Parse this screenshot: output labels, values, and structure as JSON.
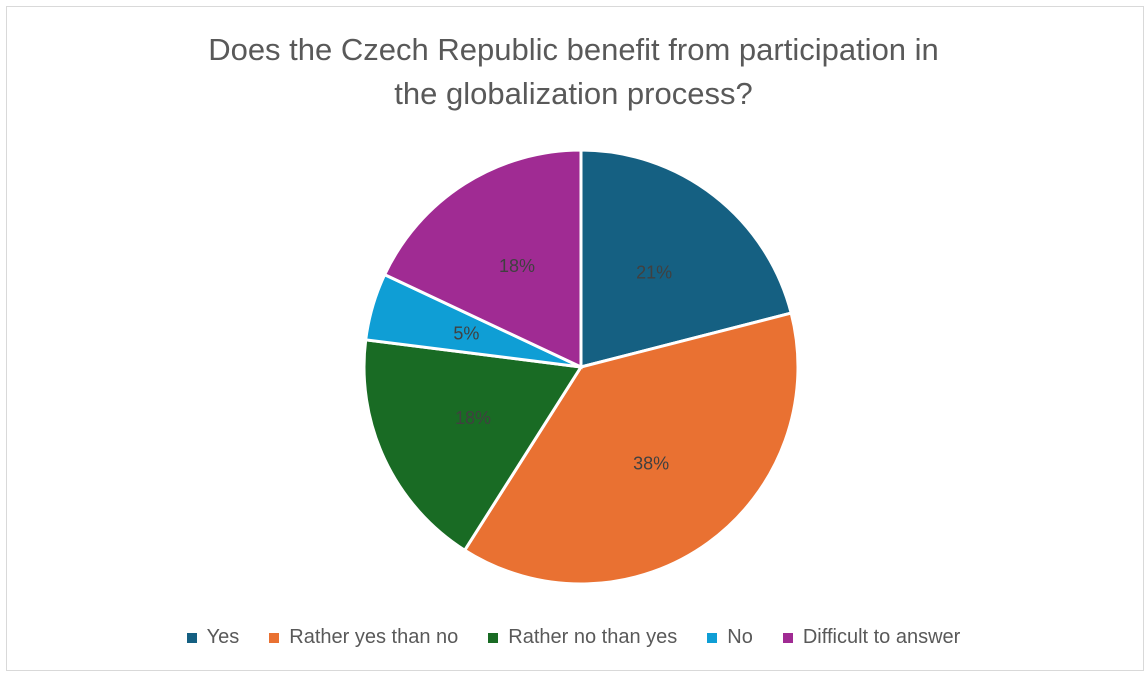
{
  "chart_data": {
    "type": "pie",
    "title_lines": [
      "Does the Czech Republic benefit from participation in",
      "the globalization process?"
    ],
    "categories": [
      "Yes",
      "Rather yes than no",
      "Rather no than yes",
      "No",
      "Difficult to answer"
    ],
    "values": [
      21,
      38,
      18,
      5,
      18
    ],
    "labels": [
      "21%",
      "38%",
      "18%",
      "5%",
      "18%"
    ],
    "colors": [
      "#156082",
      "#E97132",
      "#196B24",
      "#0F9ED5",
      "#A02B93"
    ],
    "legend_position": "bottom"
  }
}
